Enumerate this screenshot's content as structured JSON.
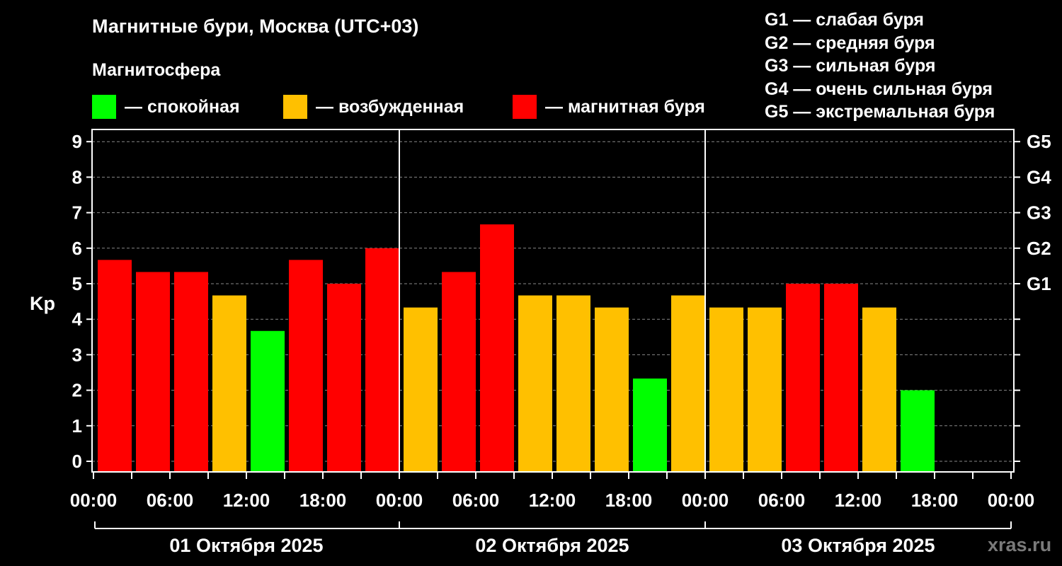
{
  "title": "Магнитные бури, Москва (UTC+03)",
  "subtitle": "Магнитосфера",
  "legend": [
    {
      "label": "— спокойная",
      "color": "#00ff00"
    },
    {
      "label": "— возбужденная",
      "color": "#ffc000"
    },
    {
      "label": "— магнитная буря",
      "color": "#ff0000"
    }
  ],
  "g_levels": [
    "G1 — слабая буря",
    "G2 — средняя буря",
    "G3 — сильная буря",
    "G4 — очень сильная буря",
    "G5 — экстремальная буря"
  ],
  "watermark": "xras.ru",
  "chart_data": {
    "type": "bar",
    "ylabel": "Kp",
    "ylim": [
      0,
      9
    ],
    "yticks": [
      "0",
      "1",
      "2",
      "3",
      "4",
      "5",
      "6",
      "7",
      "8",
      "9"
    ],
    "right_ticks": [
      {
        "value": 5,
        "label": "G1"
      },
      {
        "value": 6,
        "label": "G2"
      },
      {
        "value": 7,
        "label": "G3"
      },
      {
        "value": 8,
        "label": "G4"
      },
      {
        "value": 9,
        "label": "G5"
      }
    ],
    "grid": true,
    "x_tick_labels": [
      "00:00",
      "06:00",
      "12:00",
      "18:00",
      "00:00",
      "06:00",
      "12:00",
      "18:00",
      "00:00",
      "06:00",
      "12:00",
      "18:00",
      "00:00"
    ],
    "days": [
      "01 Октября 2025",
      "02 Октября 2025",
      "03 Октября 2025"
    ],
    "categories": [
      "01 Октября 2025 00:00",
      "01 Октября 2025 03:00",
      "01 Октября 2025 06:00",
      "01 Октября 2025 09:00",
      "01 Октября 2025 12:00",
      "01 Октября 2025 15:00",
      "01 Октября 2025 18:00",
      "01 Октября 2025 21:00",
      "02 Октября 2025 00:00",
      "02 Октября 2025 03:00",
      "02 Октября 2025 06:00",
      "02 Октября 2025 09:00",
      "02 Октября 2025 12:00",
      "02 Октября 2025 15:00",
      "02 Октября 2025 18:00",
      "02 Октября 2025 21:00",
      "03 Октября 2025 00:00",
      "03 Октября 2025 03:00",
      "03 Октября 2025 06:00",
      "03 Октября 2025 09:00",
      "03 Октября 2025 12:00",
      "03 Октября 2025 15:00"
    ],
    "values": [
      5.67,
      5.33,
      5.33,
      4.67,
      3.67,
      5.67,
      5.0,
      6.0,
      4.33,
      5.33,
      6.67,
      4.67,
      4.67,
      4.33,
      2.33,
      4.67,
      4.33,
      4.33,
      5.0,
      5.0,
      4.33,
      2.0
    ],
    "bar_colors": [
      "#ff0000",
      "#ff0000",
      "#ff0000",
      "#ffc000",
      "#00ff00",
      "#ff0000",
      "#ff0000",
      "#ff0000",
      "#ffc000",
      "#ff0000",
      "#ff0000",
      "#ffc000",
      "#ffc000",
      "#ffc000",
      "#00ff00",
      "#ffc000",
      "#ffc000",
      "#ffc000",
      "#ff0000",
      "#ff0000",
      "#ffc000",
      "#00ff00"
    ]
  }
}
